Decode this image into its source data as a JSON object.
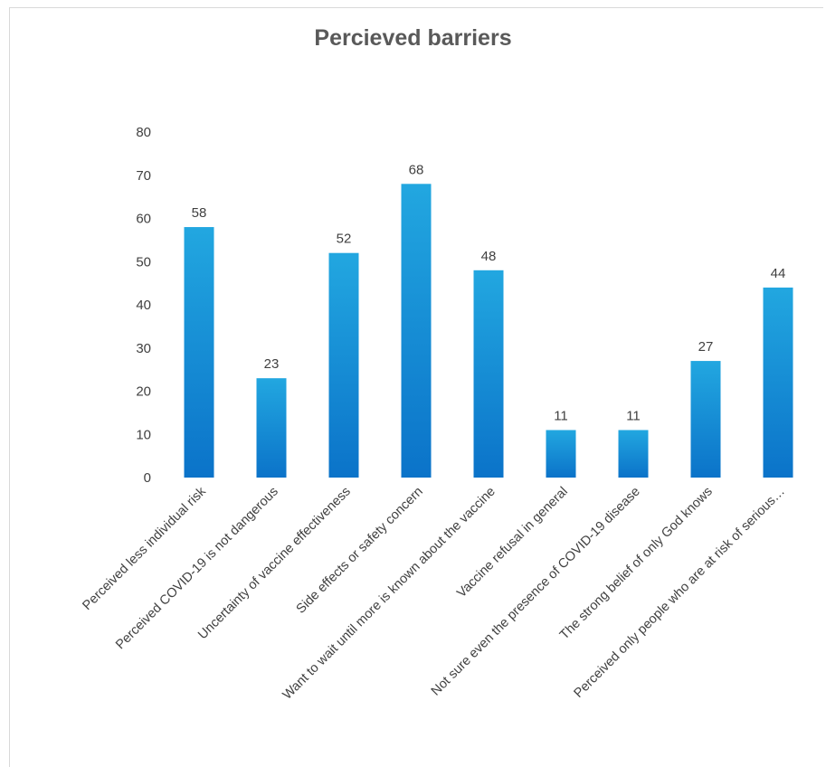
{
  "chart_data": {
    "type": "bar",
    "title": "Percieved barriers",
    "categories": [
      "Perceived less individual risk",
      "Perceived COVID-19 is not dangerous",
      "Uncertainty of vaccine effectiveness",
      "Side effects or safety concern",
      "Want to wait until more is known about the vaccine",
      "Vaccine refusal in general",
      "Not sure even the presence of COVID-19 disease",
      "The strong belief of only God knows",
      "Perceived only people who are at risk of serious…"
    ],
    "values": [
      58,
      23,
      52,
      68,
      48,
      11,
      11,
      27,
      44
    ],
    "ylim": [
      0,
      80
    ],
    "yticks": [
      0,
      10,
      20,
      30,
      40,
      50,
      60,
      70,
      80
    ],
    "grid": false,
    "data_labels": true,
    "colors": {
      "bar_top": "#22a7e0",
      "bar_bottom": "#0b73c9",
      "text": "#404040",
      "title": "#595959"
    }
  }
}
